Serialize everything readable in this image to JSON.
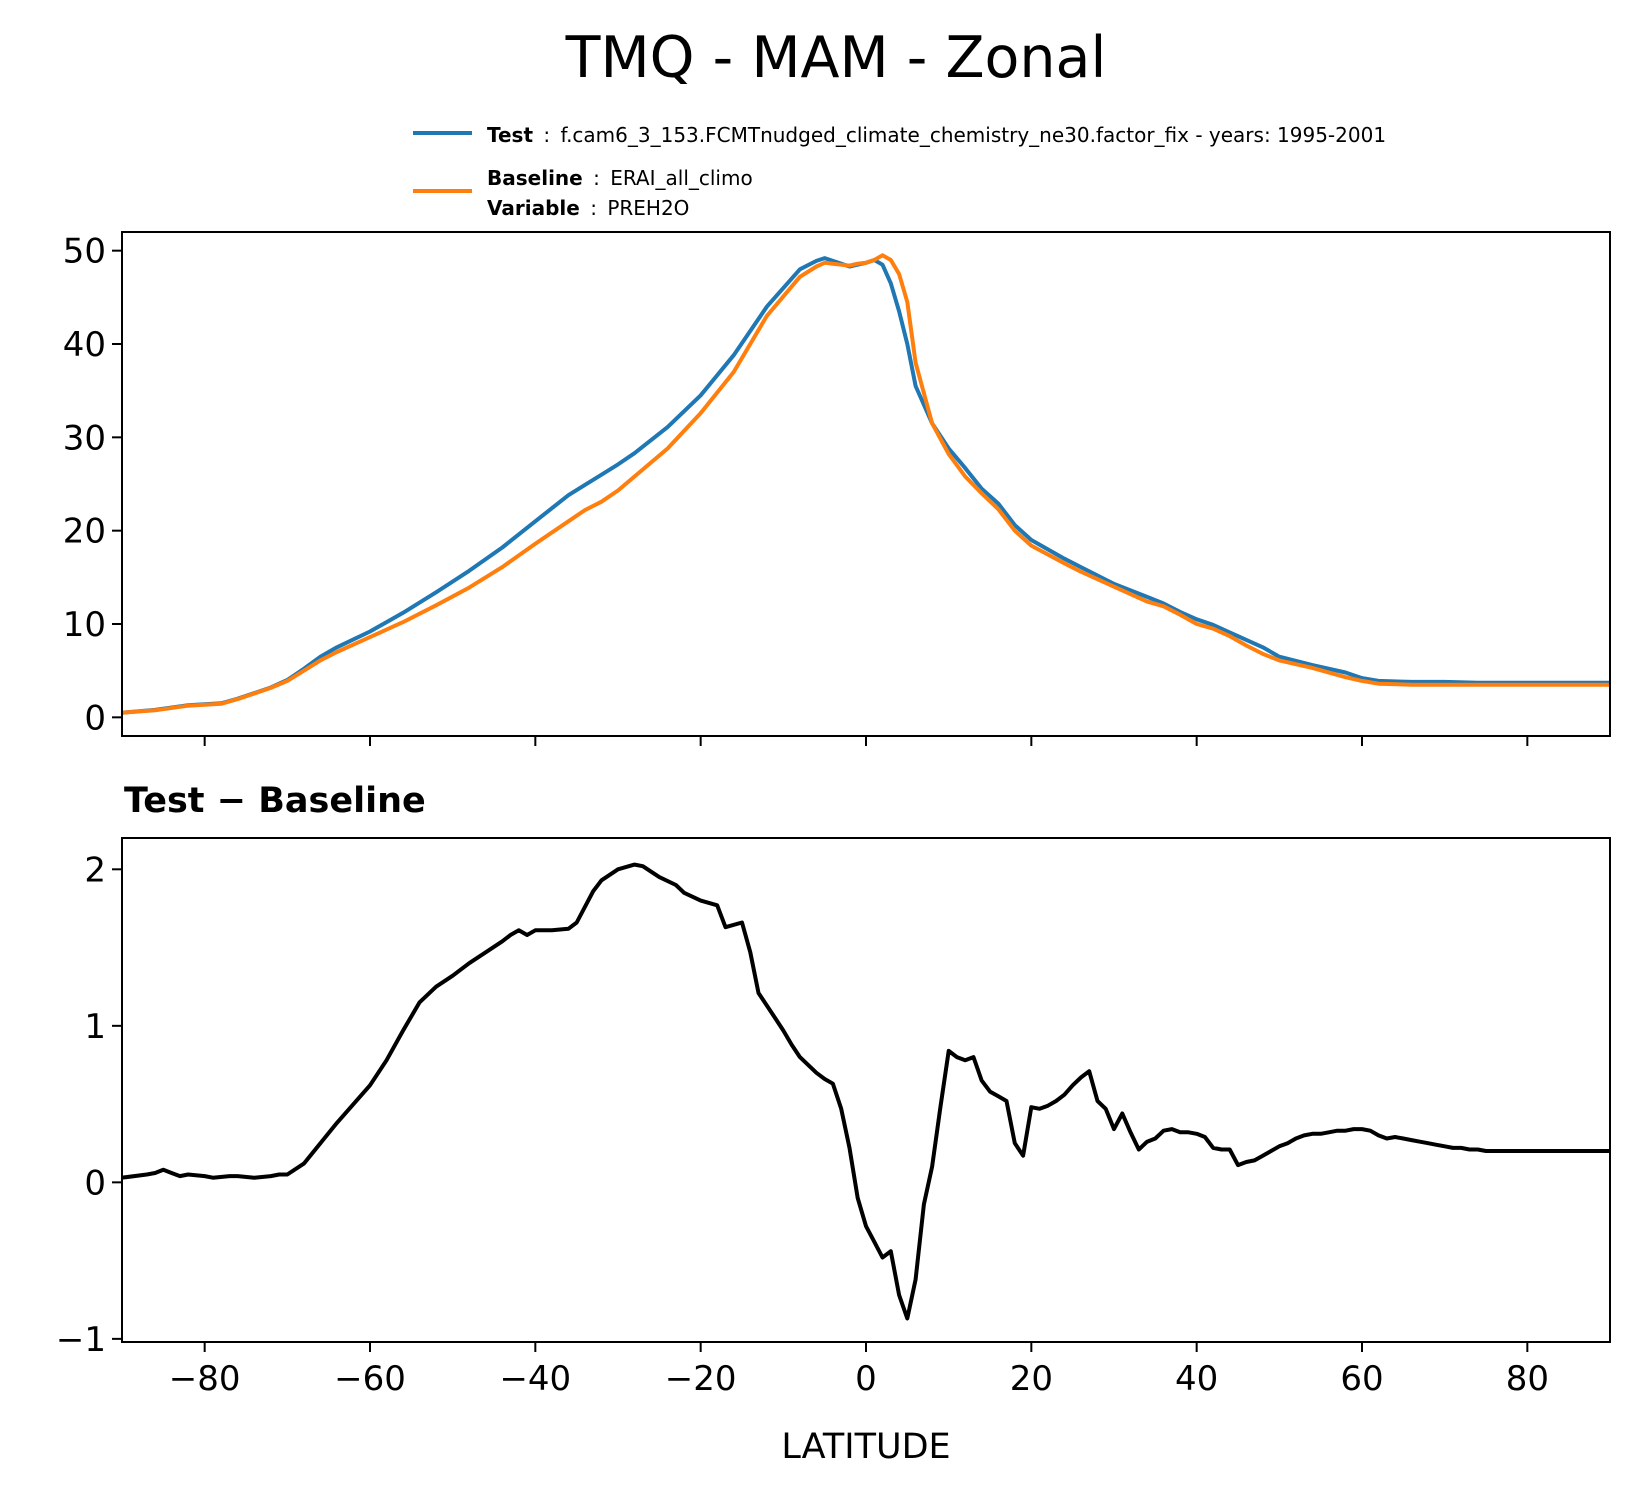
{
  "figure": {
    "title": "TMQ - MAM - Zonal"
  },
  "legend": {
    "test_label": "Test",
    "test_desc": "f.cam6_3_153.FCMTnudged_climate_chemistry_ne30.factor_fix - years: 1995-2001",
    "baseline_label": "Baseline",
    "baseline_desc": "ERAI_all_climo",
    "variable_label": "Variable",
    "variable_desc": "PREH2O",
    "separator": ":"
  },
  "colors": {
    "test": "#1f77b4",
    "baseline": "#ff7f0e",
    "diff": "#000000",
    "axis": "#000000"
  },
  "chart_data": [
    {
      "type": "line",
      "title": "",
      "xlabel": "",
      "ylabel": "",
      "xlim": [
        -90,
        90
      ],
      "ylim": [
        -2,
        52
      ],
      "yticks": [
        0,
        10,
        20,
        30,
        40,
        50
      ],
      "xticks": [
        -80,
        -60,
        -40,
        -20,
        0,
        20,
        40,
        60,
        80
      ],
      "x": [
        -90,
        -86,
        -82,
        -78,
        -76,
        -72,
        -70,
        -68,
        -66,
        -64,
        -60,
        -56,
        -52,
        -48,
        -44,
        -40,
        -36,
        -34,
        -32,
        -30,
        -28,
        -24,
        -20,
        -16,
        -12,
        -8,
        -6,
        -5,
        -4,
        -3,
        -2,
        -1,
        0,
        1,
        2,
        3,
        4,
        5,
        6,
        8,
        10,
        12,
        14,
        16,
        18,
        20,
        24,
        26,
        28,
        30,
        34,
        36,
        38,
        40,
        42,
        44,
        46,
        48,
        50,
        54,
        58,
        60,
        62,
        66,
        70,
        74,
        78,
        80,
        82,
        86,
        90
      ],
      "series": [
        {
          "name": "Test",
          "values": [
            0.5,
            0.8,
            1.3,
            1.5,
            2.0,
            3.2,
            4.0,
            5.2,
            6.5,
            7.5,
            9.2,
            11.2,
            13.4,
            15.7,
            18.2,
            21.0,
            23.8,
            24.9,
            26.0,
            27.1,
            28.3,
            31.1,
            34.5,
            38.8,
            44.0,
            48.0,
            48.9,
            49.2,
            48.9,
            48.6,
            48.3,
            48.5,
            48.7,
            49.0,
            48.5,
            46.5,
            43.5,
            40.0,
            35.5,
            31.5,
            28.8,
            26.7,
            24.5,
            22.9,
            20.6,
            19.0,
            17.0,
            16.1,
            15.2,
            14.3,
            12.9,
            12.2,
            11.3,
            10.5,
            9.9,
            9.1,
            8.3,
            7.5,
            6.5,
            5.6,
            4.8,
            4.2,
            3.9,
            3.8,
            3.8,
            3.7,
            3.7,
            3.7,
            3.7,
            3.7,
            3.7
          ]
        },
        {
          "name": "Baseline",
          "values": [
            0.5,
            0.75,
            1.25,
            1.45,
            1.95,
            3.15,
            3.9,
            5.0,
            6.1,
            7.0,
            8.6,
            10.2,
            12.0,
            13.9,
            16.1,
            18.6,
            21.0,
            22.2,
            23.1,
            24.3,
            25.8,
            28.8,
            32.6,
            37.0,
            43.0,
            47.2,
            48.3,
            48.7,
            48.6,
            48.5,
            48.4,
            48.6,
            48.7,
            49.0,
            49.5,
            49.0,
            47.5,
            44.5,
            38.0,
            31.5,
            28.2,
            25.8,
            24.0,
            22.3,
            20.0,
            18.4,
            16.5,
            15.6,
            14.8,
            14.0,
            12.4,
            11.9,
            11.0,
            10.0,
            9.5,
            8.7,
            7.7,
            6.8,
            6.1,
            5.3,
            4.3,
            3.9,
            3.6,
            3.5,
            3.5,
            3.5,
            3.5,
            3.5,
            3.5,
            3.5,
            3.5
          ]
        }
      ]
    },
    {
      "type": "line",
      "title": "Test − Baseline",
      "xlabel": "LATITUDE",
      "ylabel": "",
      "xlim": [
        -90,
        90
      ],
      "ylim": [
        -1.02,
        2.2
      ],
      "yticks": [
        -1,
        0,
        1,
        2
      ],
      "xticks": [
        -80,
        -60,
        -40,
        -20,
        0,
        20,
        40,
        60,
        80
      ],
      "xtick_labels": [
        "−80",
        "−60",
        "−40",
        "−20",
        "0",
        "20",
        "40",
        "60",
        "80"
      ],
      "ytick_labels": [
        "−1",
        "0",
        "1",
        "2"
      ],
      "x": [
        -90,
        -87,
        -86,
        -85,
        -84,
        -83,
        -82,
        -80,
        -79,
        -77,
        -76,
        -74,
        -72,
        -71,
        -70,
        -68,
        -66,
        -64,
        -62,
        -60,
        -58,
        -56,
        -54,
        -52,
        -50,
        -48,
        -46,
        -44,
        -43,
        -42,
        -41,
        -40,
        -38,
        -36,
        -35,
        -33,
        -32,
        -30,
        -28,
        -27,
        -25,
        -23,
        -22,
        -20,
        -18,
        -17,
        -15,
        -14,
        -13,
        -11,
        -10,
        -9,
        -8,
        -6,
        -5,
        -4,
        -3,
        -2,
        -1,
        0,
        1,
        2,
        3,
        4,
        5,
        6,
        7,
        8,
        9,
        10,
        11,
        12,
        13,
        14,
        15,
        16,
        17,
        18,
        19,
        20,
        21,
        22,
        23,
        24,
        25,
        26,
        27,
        28,
        29,
        30,
        31,
        32,
        33,
        34,
        35,
        36,
        37,
        38,
        39,
        40,
        41,
        42,
        43,
        44,
        45,
        46,
        47,
        48,
        49,
        50,
        51,
        52,
        53,
        54,
        55,
        56,
        57,
        58,
        59,
        60,
        61,
        62,
        63,
        64,
        65,
        66,
        67,
        68,
        69,
        70,
        71,
        72,
        73,
        74,
        75,
        76,
        77,
        78,
        79,
        80,
        81,
        82,
        83,
        84,
        85,
        86,
        87,
        88,
        89,
        90
      ],
      "values": [
        0.03,
        0.05,
        0.06,
        0.08,
        0.06,
        0.04,
        0.05,
        0.04,
        0.03,
        0.04,
        0.04,
        0.03,
        0.04,
        0.05,
        0.05,
        0.12,
        0.25,
        0.38,
        0.5,
        0.62,
        0.78,
        0.97,
        1.15,
        1.25,
        1.32,
        1.4,
        1.47,
        1.54,
        1.58,
        1.61,
        1.58,
        1.61,
        1.61,
        1.62,
        1.66,
        1.86,
        1.93,
        2.0,
        2.03,
        2.02,
        1.95,
        1.9,
        1.85,
        1.8,
        1.77,
        1.63,
        1.66,
        1.47,
        1.21,
        1.05,
        0.97,
        0.88,
        0.8,
        0.7,
        0.66,
        0.63,
        0.47,
        0.22,
        -0.1,
        -0.28,
        -0.38,
        -0.48,
        -0.44,
        -0.72,
        -0.87,
        -0.62,
        -0.14,
        0.1,
        0.48,
        0.84,
        0.8,
        0.78,
        0.8,
        0.65,
        0.58,
        0.55,
        0.52,
        0.25,
        0.17,
        0.48,
        0.47,
        0.49,
        0.52,
        0.56,
        0.62,
        0.67,
        0.71,
        0.52,
        0.47,
        0.34,
        0.44,
        0.32,
        0.21,
        0.26,
        0.28,
        0.33,
        0.34,
        0.32,
        0.32,
        0.31,
        0.29,
        0.22,
        0.21,
        0.21,
        0.11,
        0.13,
        0.14,
        0.17,
        0.2,
        0.23,
        0.25,
        0.28,
        0.3,
        0.31,
        0.31,
        0.32,
        0.33,
        0.33,
        0.34,
        0.34,
        0.33,
        0.3,
        0.28,
        0.29,
        0.28,
        0.27,
        0.26,
        0.25,
        0.24,
        0.23,
        0.22,
        0.22,
        0.21,
        0.21,
        0.2,
        0.2,
        0.2,
        0.2,
        0.2,
        0.2,
        0.2,
        0.2,
        0.2,
        0.2,
        0.2,
        0.2,
        0.2,
        0.2,
        0.2,
        0.2
      ]
    }
  ]
}
